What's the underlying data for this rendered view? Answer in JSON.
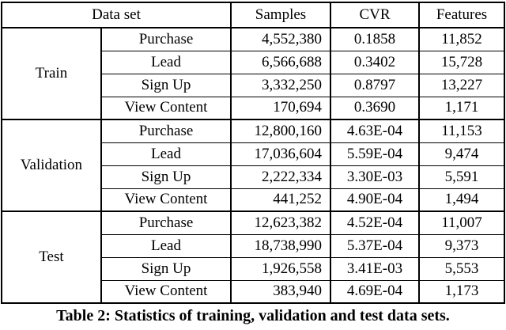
{
  "table": {
    "headers": {
      "dataset": "Data set",
      "samples": "Samples",
      "cvr": "CVR",
      "features": "Features"
    },
    "groups": [
      {
        "name": "Train",
        "rows": [
          {
            "type": "Purchase",
            "samples": "4,552,380",
            "cvr": "0.1858",
            "features": "11,852"
          },
          {
            "type": "Lead",
            "samples": "6,566,688",
            "cvr": "0.3402",
            "features": "15,728"
          },
          {
            "type": "Sign Up",
            "samples": "3,332,250",
            "cvr": "0.8797",
            "features": "13,227"
          },
          {
            "type": "View Content",
            "samples": "170,694",
            "cvr": "0.3690",
            "features": "1,171"
          }
        ]
      },
      {
        "name": "Validation",
        "rows": [
          {
            "type": "Purchase",
            "samples": "12,800,160",
            "cvr": "4.63E-04",
            "features": "11,153"
          },
          {
            "type": "Lead",
            "samples": "17,036,604",
            "cvr": "5.59E-04",
            "features": "9,474"
          },
          {
            "type": "Sign Up",
            "samples": "2,222,334",
            "cvr": "3.30E-03",
            "features": "5,591"
          },
          {
            "type": "View Content",
            "samples": "441,252",
            "cvr": "4.90E-04",
            "features": "1,494"
          }
        ]
      },
      {
        "name": "Test",
        "rows": [
          {
            "type": "Purchase",
            "samples": "12,623,382",
            "cvr": "4.52E-04",
            "features": "11,007"
          },
          {
            "type": "Lead",
            "samples": "18,738,990",
            "cvr": "5.37E-04",
            "features": "9,373"
          },
          {
            "type": "Sign Up",
            "samples": "1,926,558",
            "cvr": "3.41E-03",
            "features": "5,553"
          },
          {
            "type": "View Content",
            "samples": "383,940",
            "cvr": "4.69E-04",
            "features": "1,173"
          }
        ]
      }
    ]
  },
  "caption": "Table 2: Statistics of training, validation and test data sets."
}
